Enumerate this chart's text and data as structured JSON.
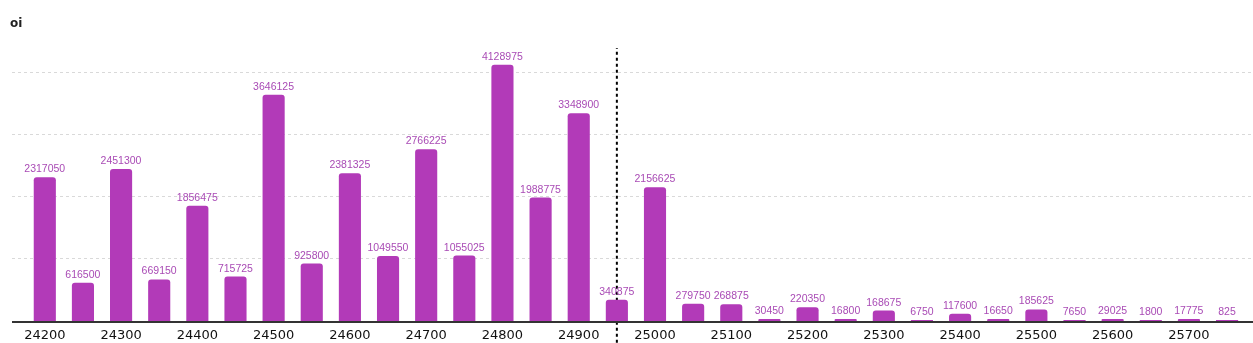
{
  "chart_data": {
    "type": "bar",
    "ylabel": "oi",
    "x": [
      24200,
      24250,
      24300,
      24350,
      24400,
      24450,
      24500,
      24550,
      24600,
      24650,
      24700,
      24750,
      24800,
      24850,
      24900,
      24950,
      25000,
      25050,
      25100,
      25150,
      25200,
      25250,
      25300,
      25350,
      25400,
      25450,
      25500,
      25550,
      25600,
      25650,
      25700,
      25750
    ],
    "values": [
      2317050,
      616500,
      2451300,
      669150,
      1856475,
      715725,
      3646125,
      925800,
      2381325,
      1049550,
      2766225,
      1055025,
      4128975,
      1988775,
      3348900,
      340875,
      2156625,
      279750,
      268875,
      30450,
      220350,
      16800,
      168675,
      6750,
      117600,
      16650,
      185625,
      7650,
      29025,
      1800,
      17775,
      825
    ],
    "color": "#b23ab8",
    "data_labels": true,
    "xlim": [
      24157,
      25784
    ],
    "xticks": [
      24200,
      24300,
      24400,
      24500,
      24600,
      24700,
      24800,
      24900,
      25000,
      25100,
      25200,
      25300,
      25400,
      25500,
      25600,
      25700
    ],
    "ylim": [
      0,
      4400000
    ],
    "yticks": [
      {
        "value": 1000000,
        "label": null
      },
      {
        "value": 2000000,
        "label": null
      },
      {
        "value": 3000000,
        "label": null
      },
      {
        "value": 4000000,
        "label": null
      }
    ],
    "grid": "y",
    "tick_labels": "x",
    "ref_lines": [
      {
        "axis": "x",
        "value": 24950,
        "color": "#000000",
        "line_style": "dotted"
      }
    ]
  }
}
